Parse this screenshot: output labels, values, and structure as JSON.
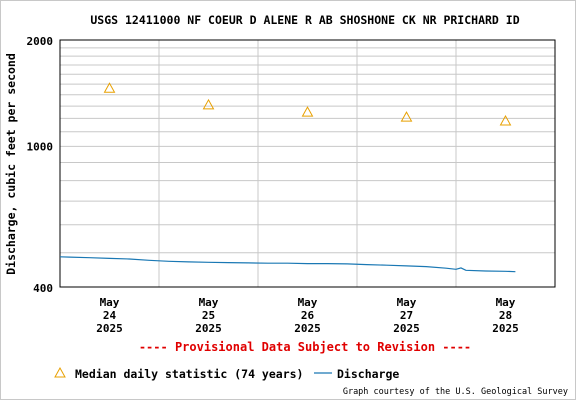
{
  "chart_data": {
    "type": "line",
    "title": "USGS 12411000 NF COEUR D ALENE R AB SHOSHONE CK NR PRICHARD ID",
    "ylabel": "Discharge, cubic feet per second",
    "xlabel": "",
    "y_scale": "log",
    "ylim": [
      400,
      2000
    ],
    "y_ticks": [
      {
        "value": 2000,
        "label": "2000"
      },
      {
        "value": 1000,
        "label": "1000"
      },
      {
        "value": 400,
        "label": "400"
      }
    ],
    "x_ticks": [
      {
        "day": 24,
        "l1": "May",
        "l2": "24",
        "l3": "2025"
      },
      {
        "day": 25,
        "l1": "May",
        "l2": "25",
        "l3": "2025"
      },
      {
        "day": 26,
        "l1": "May",
        "l2": "26",
        "l3": "2025"
      },
      {
        "day": 27,
        "l1": "May",
        "l2": "27",
        "l3": "2025"
      },
      {
        "day": 28,
        "l1": "May",
        "l2": "28",
        "l3": "2025"
      }
    ],
    "xlim": [
      "2025-05-23 12:00",
      "2025-05-28 12:00"
    ],
    "grid": true,
    "legend_position": "bottom",
    "series": [
      {
        "name": "Median daily statistic (74 years)",
        "marker": "triangle",
        "color": "#e8a000",
        "points": [
          {
            "day": 24,
            "value": 1460
          },
          {
            "day": 25,
            "value": 1310
          },
          {
            "day": 26,
            "value": 1250
          },
          {
            "day": 27,
            "value": 1210
          },
          {
            "day": 28,
            "value": 1180
          }
        ]
      },
      {
        "name": "Discharge",
        "marker": "line",
        "color": "#1a78b4",
        "points": [
          {
            "day": 23.5,
            "value": 487
          },
          {
            "day": 23.6,
            "value": 486
          },
          {
            "day": 23.8,
            "value": 484
          },
          {
            "day": 24.0,
            "value": 482
          },
          {
            "day": 24.2,
            "value": 480
          },
          {
            "day": 24.4,
            "value": 476
          },
          {
            "day": 24.6,
            "value": 473
          },
          {
            "day": 24.8,
            "value": 471
          },
          {
            "day": 25.0,
            "value": 470
          },
          {
            "day": 25.2,
            "value": 469
          },
          {
            "day": 25.4,
            "value": 468
          },
          {
            "day": 25.6,
            "value": 467
          },
          {
            "day": 25.8,
            "value": 467
          },
          {
            "day": 26.0,
            "value": 466
          },
          {
            "day": 26.2,
            "value": 466
          },
          {
            "day": 26.4,
            "value": 465
          },
          {
            "day": 26.6,
            "value": 463
          },
          {
            "day": 26.8,
            "value": 461
          },
          {
            "day": 27.0,
            "value": 459
          },
          {
            "day": 27.2,
            "value": 457
          },
          {
            "day": 27.4,
            "value": 452
          },
          {
            "day": 27.5,
            "value": 449
          },
          {
            "day": 27.55,
            "value": 453
          },
          {
            "day": 27.6,
            "value": 446
          },
          {
            "day": 27.8,
            "value": 444
          },
          {
            "day": 28.0,
            "value": 443
          },
          {
            "day": 28.1,
            "value": 442
          }
        ]
      }
    ]
  },
  "provisional_text": "---- Provisional Data Subject to Revision ----",
  "credit": "Graph courtesy of the U.S. Geological Survey",
  "colors": {
    "median": "#e8a000",
    "discharge": "#1a78b4",
    "provisional": "#e00000",
    "grid": "#c8c8c8"
  }
}
